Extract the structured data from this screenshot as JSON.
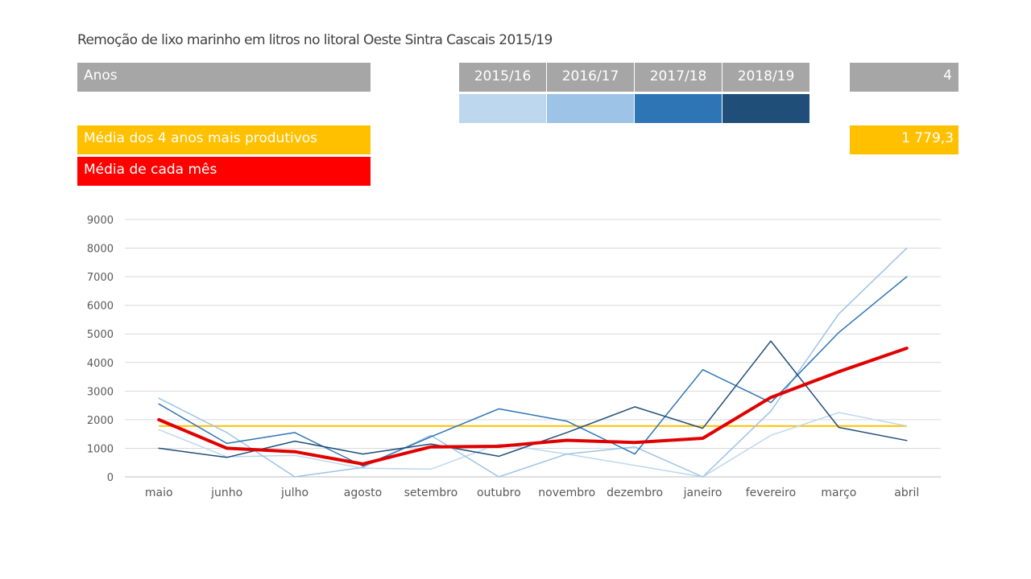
{
  "title": "Remoção de lixo marinho em litros no litoral Oeste Sintra Cascais 2015/19",
  "legend": {
    "anos_label": "Anos",
    "anos_count": "4",
    "media_top4_label": "Média dos 4 anos mais produtivos",
    "media_top4_value": "1 779,3",
    "media_mes_label": "Média de cada mês",
    "years": [
      {
        "label": "2015/16",
        "color": "#bdd7ee"
      },
      {
        "label": "2016/17",
        "color": "#9dc3e6"
      },
      {
        "label": "2017/18",
        "color": "#2e75b6"
      },
      {
        "label": "2018/19",
        "color": "#1f4e79"
      }
    ],
    "header_color": "#a6a6a6",
    "average_color": "#ffc000",
    "monthly_mean_color": "#e00000"
  },
  "chart_data": {
    "type": "line",
    "categories": [
      "maio",
      "junho",
      "julho",
      "agosto",
      "setembro",
      "outubro",
      "novembro",
      "dezembro",
      "janeiro",
      "fevereiro",
      "março",
      "abril"
    ],
    "yticks": [
      "0",
      "1000",
      "2000",
      "3000",
      "4000",
      "5000",
      "6000",
      "7000",
      "8000",
      "9000"
    ],
    "ylim": [
      0,
      9000
    ],
    "grid": true,
    "series": [
      {
        "name": "2015/16",
        "color": "#bdd7ee",
        "width": 1.5,
        "values": [
          1650,
          700,
          750,
          300,
          270,
          1150,
          800,
          400,
          0,
          1450,
          2250,
          1780
        ]
      },
      {
        "name": "2016/17",
        "color": "#9dc3e6",
        "width": 1.5,
        "values": [
          2750,
          1550,
          0,
          330,
          1450,
          0,
          800,
          1050,
          0,
          2300,
          5700,
          8000
        ]
      },
      {
        "name": "2017/18",
        "color": "#2e75b6",
        "width": 1.5,
        "values": [
          2550,
          1170,
          1550,
          380,
          1400,
          2380,
          1950,
          800,
          3750,
          2600,
          5050,
          7000
        ]
      },
      {
        "name": "2018/19",
        "color": "#1f4e79",
        "width": 1.5,
        "values": [
          1000,
          680,
          1250,
          800,
          1150,
          720,
          1550,
          2450,
          1700,
          4750,
          1730,
          1270
        ]
      },
      {
        "name": "Média de cada mês",
        "color": "#e00000",
        "width": 4,
        "values": [
          2000,
          1000,
          880,
          450,
          1050,
          1070,
          1280,
          1200,
          1350,
          2780,
          3680,
          4500
        ]
      }
    ],
    "reference_line": {
      "name": "Média dos 4 anos mais produtivos",
      "value": 1779.3,
      "color": "#ffc000"
    }
  }
}
